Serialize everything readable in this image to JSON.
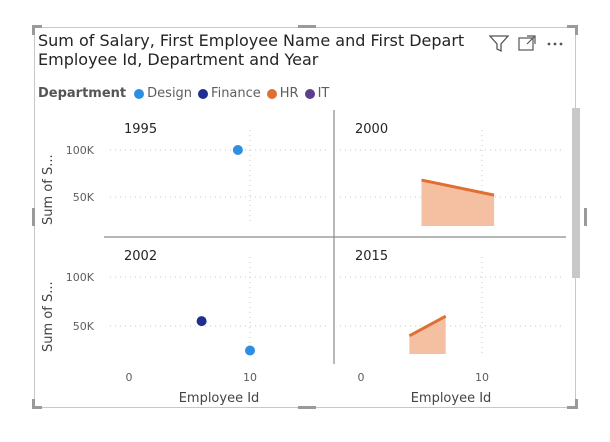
{
  "visual": {
    "title_line1": "Sum of Salary, First Employee Name and First Depart",
    "title_line2": "Employee Id, Department and Year",
    "icons": [
      "filter-icon",
      "focus-mode-icon",
      "more-options-icon"
    ]
  },
  "legend": {
    "title": "Department",
    "items": [
      {
        "label": "Design",
        "color": "#2D8FE3"
      },
      {
        "label": "Finance",
        "color": "#1F2F8F"
      },
      {
        "label": "HR",
        "color": "#E07032"
      },
      {
        "label": "IT",
        "color": "#5B3E8C"
      }
    ]
  },
  "axis": {
    "ylabel": "Sum of S...",
    "xlabel": "Employee Id",
    "x_ticks": [
      "0",
      "10"
    ],
    "y_ticks": [
      "100K",
      "50K"
    ]
  },
  "chart_data": [
    {
      "type": "scatter",
      "panel": "1995",
      "xlim": [
        0,
        14
      ],
      "ylim": [
        0,
        120000
      ],
      "series": [
        {
          "name": "Design",
          "points": [
            [
              9,
              100000
            ]
          ]
        }
      ]
    },
    {
      "type": "area",
      "panel": "2000",
      "xlim": [
        0,
        14
      ],
      "ylim": [
        0,
        120000
      ],
      "series": [
        {
          "name": "HR",
          "points": [
            [
              5,
              68000
            ],
            [
              11,
              52000
            ]
          ]
        }
      ]
    },
    {
      "type": "scatter",
      "panel": "2002",
      "xlim": [
        0,
        14
      ],
      "ylim": [
        0,
        120000
      ],
      "series": [
        {
          "name": "Finance",
          "points": [
            [
              6,
              55000
            ]
          ]
        },
        {
          "name": "Design",
          "points": [
            [
              10,
              25000
            ]
          ]
        }
      ]
    },
    {
      "type": "area",
      "panel": "2015",
      "xlim": [
        0,
        14
      ],
      "ylim": [
        0,
        120000
      ],
      "series": [
        {
          "name": "HR",
          "points": [
            [
              4,
              40000
            ],
            [
              7,
              60000
            ]
          ]
        }
      ]
    }
  ]
}
